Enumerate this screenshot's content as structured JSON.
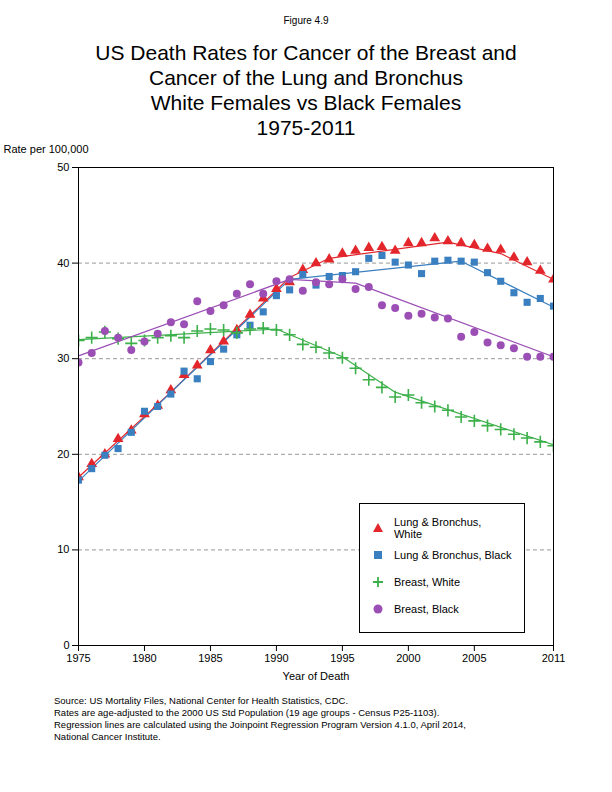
{
  "chart_data": {
    "type": "scatter",
    "figure_label": "Figure 4.9",
    "title": "US Death Rates for Cancer of the Breast and\nCancer of the Lung and Bronchus",
    "subtitle": "White Females vs Black Females\n1975-2011",
    "x_label": "Year of Death",
    "y_label": "Rate per 100,000",
    "x": [
      1975,
      1976,
      1977,
      1978,
      1979,
      1980,
      1981,
      1982,
      1983,
      1984,
      1985,
      1986,
      1987,
      1988,
      1989,
      1990,
      1991,
      1992,
      1993,
      1994,
      1995,
      1996,
      1997,
      1998,
      1999,
      2000,
      2001,
      2002,
      2003,
      2004,
      2005,
      2006,
      2007,
      2008,
      2009,
      2010,
      2011
    ],
    "series": [
      {
        "name": "Lung & Bronchus, White",
        "color": "#e3262b",
        "marker": "triangle",
        "values": [
          17.6,
          19.0,
          20.0,
          21.6,
          22.5,
          24.2,
          25.1,
          26.7,
          28.3,
          29.3,
          30.9,
          31.8,
          33.0,
          34.6,
          36.3,
          37.3,
          38.0,
          39.3,
          40.0,
          40.4,
          41.0,
          41.3,
          41.6,
          41.7,
          41.3,
          42.1,
          42.1,
          42.6,
          42.3,
          42.1,
          41.9,
          41.5,
          41.4,
          40.6,
          40.1,
          39.2,
          38.3
        ],
        "trend": {
          "x": [
            1975,
            1982,
            1991,
            1994,
            2003,
            2007,
            2011
          ],
          "values": [
            17.6,
            26.5,
            38.5,
            40.5,
            42.2,
            41.0,
            38.3
          ]
        }
      },
      {
        "name": "Lung & Bronchus, Black",
        "color": "#3a7fc0",
        "marker": "square",
        "values": [
          17.3,
          18.5,
          19.9,
          20.6,
          22.3,
          24.5,
          25.0,
          26.3,
          28.7,
          27.9,
          29.7,
          31.0,
          32.5,
          33.5,
          34.9,
          36.6,
          37.2,
          38.8,
          37.7,
          38.6,
          38.7,
          39.1,
          40.5,
          40.8,
          40.1,
          39.8,
          38.9,
          40.2,
          40.3,
          40.2,
          40.1,
          39.0,
          38.1,
          36.9,
          35.9,
          36.3,
          35.5
        ],
        "trend": {
          "x": [
            1975,
            1983,
            1991,
            2004,
            2011
          ],
          "values": [
            17.2,
            27.8,
            38.3,
            40.2,
            35.4
          ]
        }
      },
      {
        "name": "Breast, White",
        "color": "#3cb04a",
        "marker": "plus",
        "values": [
          31.9,
          32.2,
          32.8,
          32.1,
          31.6,
          31.9,
          32.2,
          32.4,
          32.2,
          32.9,
          33.1,
          33.0,
          32.7,
          33.1,
          33.2,
          33.0,
          32.5,
          31.5,
          31.2,
          30.6,
          30.1,
          29.0,
          27.8,
          27.0,
          26.0,
          26.2,
          25.4,
          25.0,
          24.6,
          23.9,
          23.5,
          23.0,
          22.6,
          22.1,
          21.7,
          21.3,
          20.9
        ],
        "trend": {
          "x": [
            1975,
            1990,
            1995,
            1999,
            2011
          ],
          "values": [
            32.0,
            33.1,
            30.2,
            26.5,
            21.0
          ]
        }
      },
      {
        "name": "Breast, Black",
        "color": "#9b4fb5",
        "marker": "circle",
        "values": [
          29.6,
          30.6,
          32.9,
          32.2,
          30.9,
          31.8,
          32.6,
          33.8,
          33.6,
          36.0,
          35.0,
          35.6,
          36.8,
          37.8,
          36.8,
          38.1,
          38.3,
          37.1,
          38.0,
          37.8,
          38.3,
          37.3,
          37.5,
          35.6,
          35.3,
          34.5,
          34.7,
          34.3,
          34.2,
          32.3,
          32.8,
          31.7,
          31.4,
          31.1,
          30.2,
          30.2,
          30.2
        ],
        "trend": {
          "x": [
            1975,
            1991,
            1996,
            2011
          ],
          "values": [
            30.3,
            38.3,
            37.9,
            30.2
          ]
        }
      }
    ],
    "xlim": [
      1975,
      2011
    ],
    "xticks": [
      1975,
      1980,
      1985,
      1990,
      1995,
      2000,
      2005,
      2011
    ],
    "ylim": [
      0,
      50
    ],
    "yticks": [
      0,
      10,
      20,
      30,
      40,
      50
    ],
    "grid": true,
    "legend": "lower right",
    "notes": [
      "Source: US Mortality Files, National Center for Health Statistics, CDC.",
      "Rates are age-adjusted to the 2000 US Std Population (19 age groups - Census P25-1103).",
      "Regression lines are calculated using the Joinpoint Regression Program Version 4.1.0, April 2014,",
      "National Cancer Institute."
    ]
  }
}
